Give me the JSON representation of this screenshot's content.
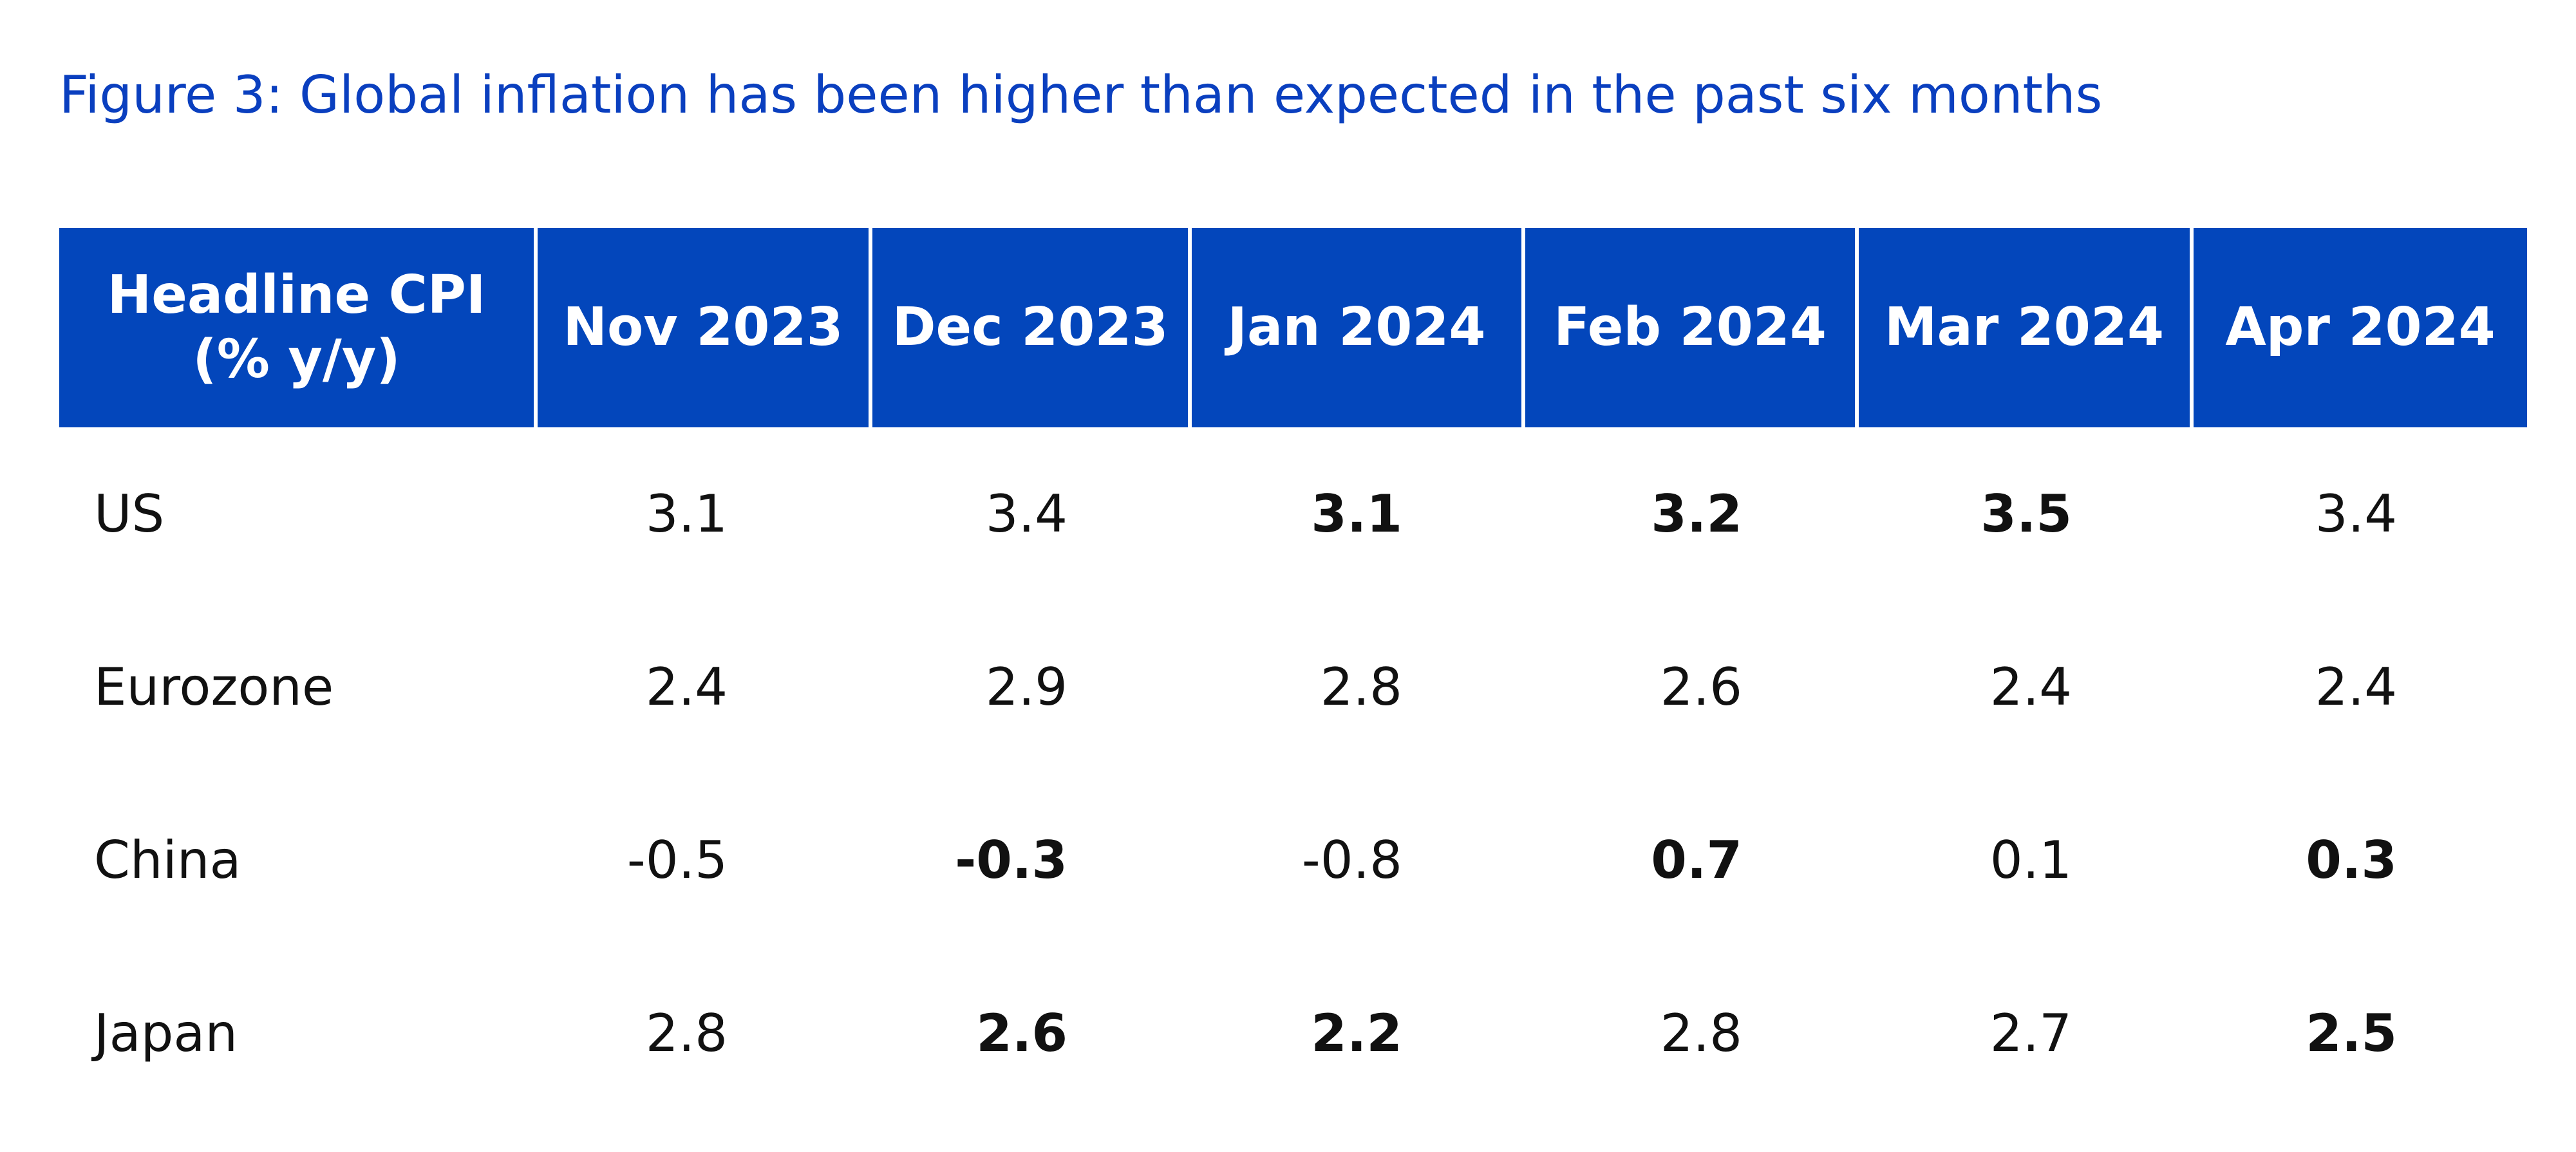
{
  "title": "Figure 3: Global inflation has been higher than expected in the past six months",
  "colors": {
    "title": "#0a3fbf",
    "header_background": "#0346bb",
    "header_text": "#ffffff",
    "body_text": "#111111"
  },
  "chart_data": {
    "type": "table",
    "title": "Figure 3: Global inflation has been higher than expected in the past six months",
    "row_header_line1": "Headline CPI",
    "row_header_line2": "(% y/y)",
    "columns": [
      "Nov  2023",
      "Dec 2023",
      "Jan 2024",
      "Feb 2024",
      "Mar 2024",
      "Apr  2024"
    ],
    "rows": [
      {
        "label": "US",
        "values": [
          "3.1",
          "3.4",
          "3.1",
          "3.2",
          "3.5",
          "3.4"
        ],
        "bold": [
          false,
          false,
          true,
          true,
          true,
          false
        ]
      },
      {
        "label": "Eurozone",
        "values": [
          "2.4",
          "2.9",
          "2.8",
          "2.6",
          "2.4",
          "2.4"
        ],
        "bold": [
          false,
          false,
          false,
          false,
          false,
          false
        ]
      },
      {
        "label": "China",
        "values": [
          "-0.5",
          "-0.3",
          "-0.8",
          "0.7",
          "0.1",
          "0.3"
        ],
        "bold": [
          false,
          true,
          false,
          true,
          false,
          true
        ]
      },
      {
        "label": "Japan",
        "values": [
          "2.8",
          "2.6",
          "2.2",
          "2.8",
          "2.7",
          "2.5"
        ],
        "bold": [
          false,
          true,
          true,
          false,
          false,
          true
        ]
      }
    ]
  }
}
